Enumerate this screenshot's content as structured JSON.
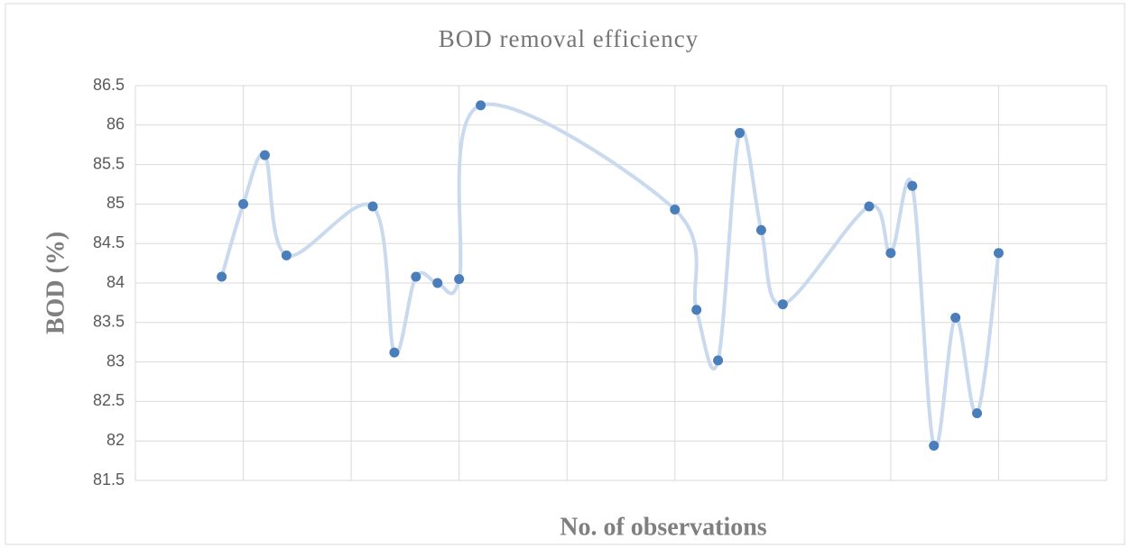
{
  "chart_data": {
    "type": "scatter",
    "title": "BOD removal efficiency",
    "x_label": "No. of observations",
    "y_label": "BOD (%)",
    "xlim": [
      0,
      45
    ],
    "xticks": [
      0,
      5,
      10,
      15,
      20,
      25,
      30,
      35,
      40,
      45
    ],
    "ylim": [
      81.5,
      86.5
    ],
    "yticks": [
      81.5,
      82,
      82.5,
      83,
      83.5,
      84,
      84.5,
      85,
      85.5,
      86,
      86.5
    ],
    "grid": true,
    "smooth": true,
    "line_color": "#c9d9ee",
    "series": [
      {
        "color": "#4a7ebb",
        "x": [
          4,
          5,
          6,
          7,
          11,
          12,
          13,
          14,
          15,
          16,
          25,
          26,
          27,
          28,
          29,
          30,
          34,
          35,
          36,
          37,
          38,
          39,
          40
        ],
        "values": [
          84.08,
          85.0,
          85.62,
          84.35,
          84.97,
          83.12,
          84.08,
          84.0,
          84.05,
          86.25,
          84.93,
          83.66,
          83.02,
          85.9,
          84.67,
          83.73,
          84.97,
          84.38,
          85.23,
          81.94,
          83.56,
          82.35,
          84.38
        ]
      }
    ]
  }
}
